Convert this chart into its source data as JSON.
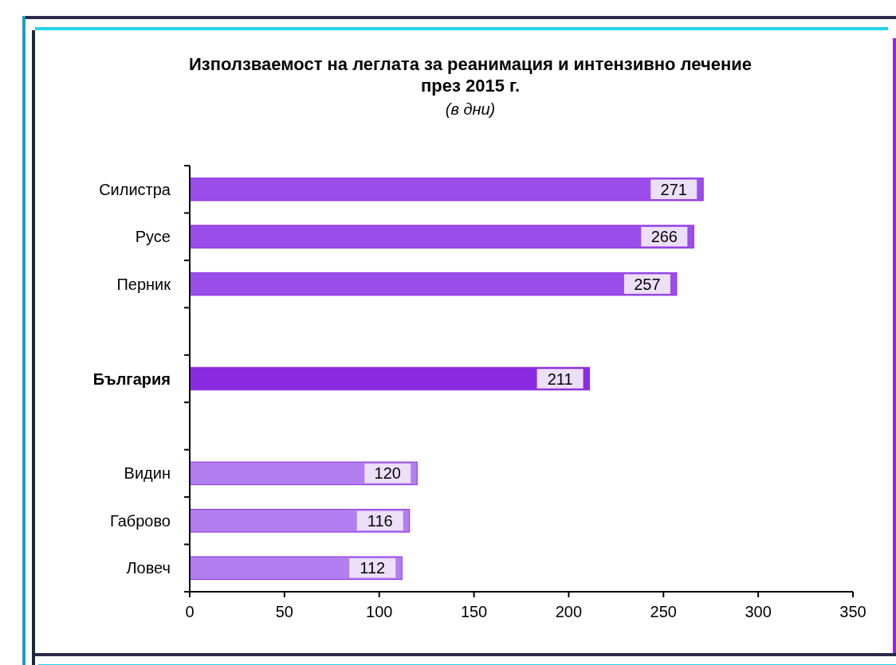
{
  "chart_data": {
    "type": "bar",
    "orientation": "horizontal",
    "title": "Използваемост на леглата за реанимация и интензивно лечение\nпрез 2015 г.",
    "subtitle": "(в дни)",
    "categories": [
      "Силистра",
      "Русе",
      "Перник",
      null,
      "България",
      null,
      "Видин",
      "Габрово",
      "Ловеч"
    ],
    "values": [
      271,
      266,
      257,
      null,
      211,
      null,
      120,
      116,
      112
    ],
    "colors": [
      "#9b4dea",
      "#9b4dea",
      "#9b4dea",
      null,
      "#8a2be2",
      null,
      "#b27ef0",
      "#b27ef0",
      "#b27ef0"
    ],
    "xlim": [
      0,
      350
    ],
    "xticks": [
      0,
      50,
      100,
      150,
      200,
      250,
      300,
      350
    ],
    "data_labels": true
  }
}
